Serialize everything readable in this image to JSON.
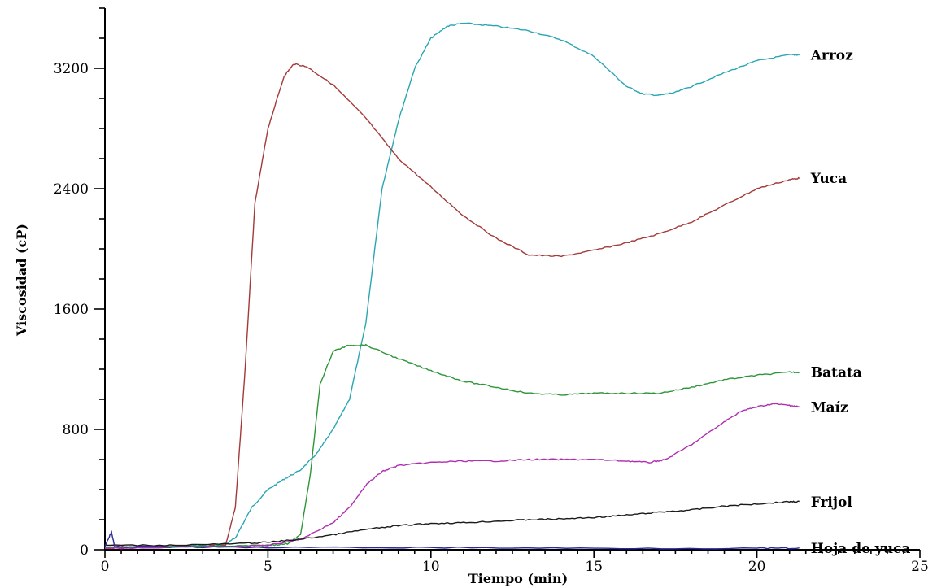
{
  "chart_data": {
    "type": "line",
    "title": "",
    "xlabel": "Tiempo (min)",
    "ylabel": "Viscosidad (cP)",
    "xlim": [
      0,
      25
    ],
    "ylim": [
      0,
      3600
    ],
    "x_ticks": [
      0,
      5,
      10,
      15,
      20,
      25
    ],
    "y_ticks": [
      0,
      800,
      1600,
      2400,
      3200
    ],
    "grid": false,
    "legend": "inline labels at right end of lines",
    "series": [
      {
        "name": "Arroz",
        "color": "#2aa6b3",
        "points": [
          [
            0,
            15
          ],
          [
            1,
            20
          ],
          [
            2,
            25
          ],
          [
            3,
            30
          ],
          [
            3.7,
            35
          ],
          [
            4,
            80
          ],
          [
            4.5,
            280
          ],
          [
            5,
            400
          ],
          [
            5.5,
            470
          ],
          [
            6,
            530
          ],
          [
            6.5,
            640
          ],
          [
            7,
            800
          ],
          [
            7.5,
            1000
          ],
          [
            8,
            1500
          ],
          [
            8.5,
            2400
          ],
          [
            9,
            2850
          ],
          [
            9.5,
            3200
          ],
          [
            10,
            3400
          ],
          [
            10.5,
            3480
          ],
          [
            11,
            3500
          ],
          [
            12,
            3480
          ],
          [
            13,
            3450
          ],
          [
            14,
            3390
          ],
          [
            15,
            3280
          ],
          [
            16,
            3080
          ],
          [
            16.5,
            3030
          ],
          [
            17,
            3020
          ],
          [
            17.5,
            3040
          ],
          [
            18,
            3080
          ],
          [
            19,
            3170
          ],
          [
            20,
            3250
          ],
          [
            21,
            3290
          ],
          [
            21.3,
            3290
          ]
        ]
      },
      {
        "name": "Yuca",
        "color": "#a33a3a",
        "points": [
          [
            0,
            10
          ],
          [
            1,
            15
          ],
          [
            2,
            20
          ],
          [
            3,
            25
          ],
          [
            3.7,
            30
          ],
          [
            4,
            280
          ],
          [
            4.3,
            1200
          ],
          [
            4.6,
            2300
          ],
          [
            5,
            2800
          ],
          [
            5.5,
            3150
          ],
          [
            5.8,
            3230
          ],
          [
            6.2,
            3210
          ],
          [
            7,
            3090
          ],
          [
            8,
            2870
          ],
          [
            9,
            2600
          ],
          [
            10,
            2410
          ],
          [
            11,
            2220
          ],
          [
            12,
            2070
          ],
          [
            13,
            1960
          ],
          [
            14,
            1950
          ],
          [
            15,
            1990
          ],
          [
            16,
            2040
          ],
          [
            17,
            2100
          ],
          [
            18,
            2180
          ],
          [
            19,
            2290
          ],
          [
            20,
            2400
          ],
          [
            21,
            2460
          ],
          [
            21.3,
            2470
          ]
        ]
      },
      {
        "name": "Batata",
        "color": "#2e9638",
        "points": [
          [
            0,
            15
          ],
          [
            2,
            20
          ],
          [
            4,
            25
          ],
          [
            5,
            30
          ],
          [
            5.6,
            40
          ],
          [
            6,
            100
          ],
          [
            6.3,
            500
          ],
          [
            6.6,
            1100
          ],
          [
            7,
            1320
          ],
          [
            7.5,
            1360
          ],
          [
            8,
            1360
          ],
          [
            9,
            1270
          ],
          [
            10,
            1190
          ],
          [
            11,
            1120
          ],
          [
            12,
            1080
          ],
          [
            13,
            1040
          ],
          [
            14,
            1030
          ],
          [
            15,
            1040
          ],
          [
            16,
            1040
          ],
          [
            17,
            1040
          ],
          [
            18,
            1080
          ],
          [
            19,
            1130
          ],
          [
            20,
            1160
          ],
          [
            21,
            1180
          ],
          [
            21.3,
            1180
          ]
        ]
      },
      {
        "name": "Maíz",
        "color": "#b02fb0",
        "points": [
          [
            0,
            10
          ],
          [
            2,
            15
          ],
          [
            4,
            20
          ],
          [
            5,
            30
          ],
          [
            6,
            70
          ],
          [
            7,
            180
          ],
          [
            7.5,
            280
          ],
          [
            8,
            430
          ],
          [
            8.5,
            520
          ],
          [
            9,
            560
          ],
          [
            10,
            580
          ],
          [
            11,
            590
          ],
          [
            12,
            590
          ],
          [
            13,
            600
          ],
          [
            14,
            600
          ],
          [
            15,
            600
          ],
          [
            16,
            590
          ],
          [
            16.7,
            580
          ],
          [
            17.2,
            600
          ],
          [
            18,
            700
          ],
          [
            19,
            850
          ],
          [
            19.5,
            920
          ],
          [
            20,
            950
          ],
          [
            20.5,
            970
          ],
          [
            21,
            960
          ],
          [
            21.3,
            950
          ]
        ]
      },
      {
        "name": "Frijol",
        "color": "#1a1a1a",
        "points": [
          [
            0,
            30
          ],
          [
            2,
            30
          ],
          [
            4,
            40
          ],
          [
            5,
            50
          ],
          [
            6,
            70
          ],
          [
            7,
            100
          ],
          [
            8,
            135
          ],
          [
            9,
            160
          ],
          [
            10,
            175
          ],
          [
            11,
            180
          ],
          [
            12,
            190
          ],
          [
            13,
            200
          ],
          [
            14,
            205
          ],
          [
            15,
            215
          ],
          [
            16,
            230
          ],
          [
            17,
            250
          ],
          [
            18,
            265
          ],
          [
            19,
            290
          ],
          [
            20,
            305
          ],
          [
            21,
            320
          ],
          [
            21.3,
            320
          ]
        ]
      },
      {
        "name": "Hoja de yuca",
        "color": "#2a2a9a",
        "points": [
          [
            0,
            20
          ],
          [
            0.2,
            120
          ],
          [
            0.3,
            20
          ],
          [
            1,
            20
          ],
          [
            5,
            15
          ],
          [
            10,
            15
          ],
          [
            15,
            10
          ],
          [
            20,
            10
          ],
          [
            21.3,
            10
          ]
        ]
      }
    ]
  }
}
